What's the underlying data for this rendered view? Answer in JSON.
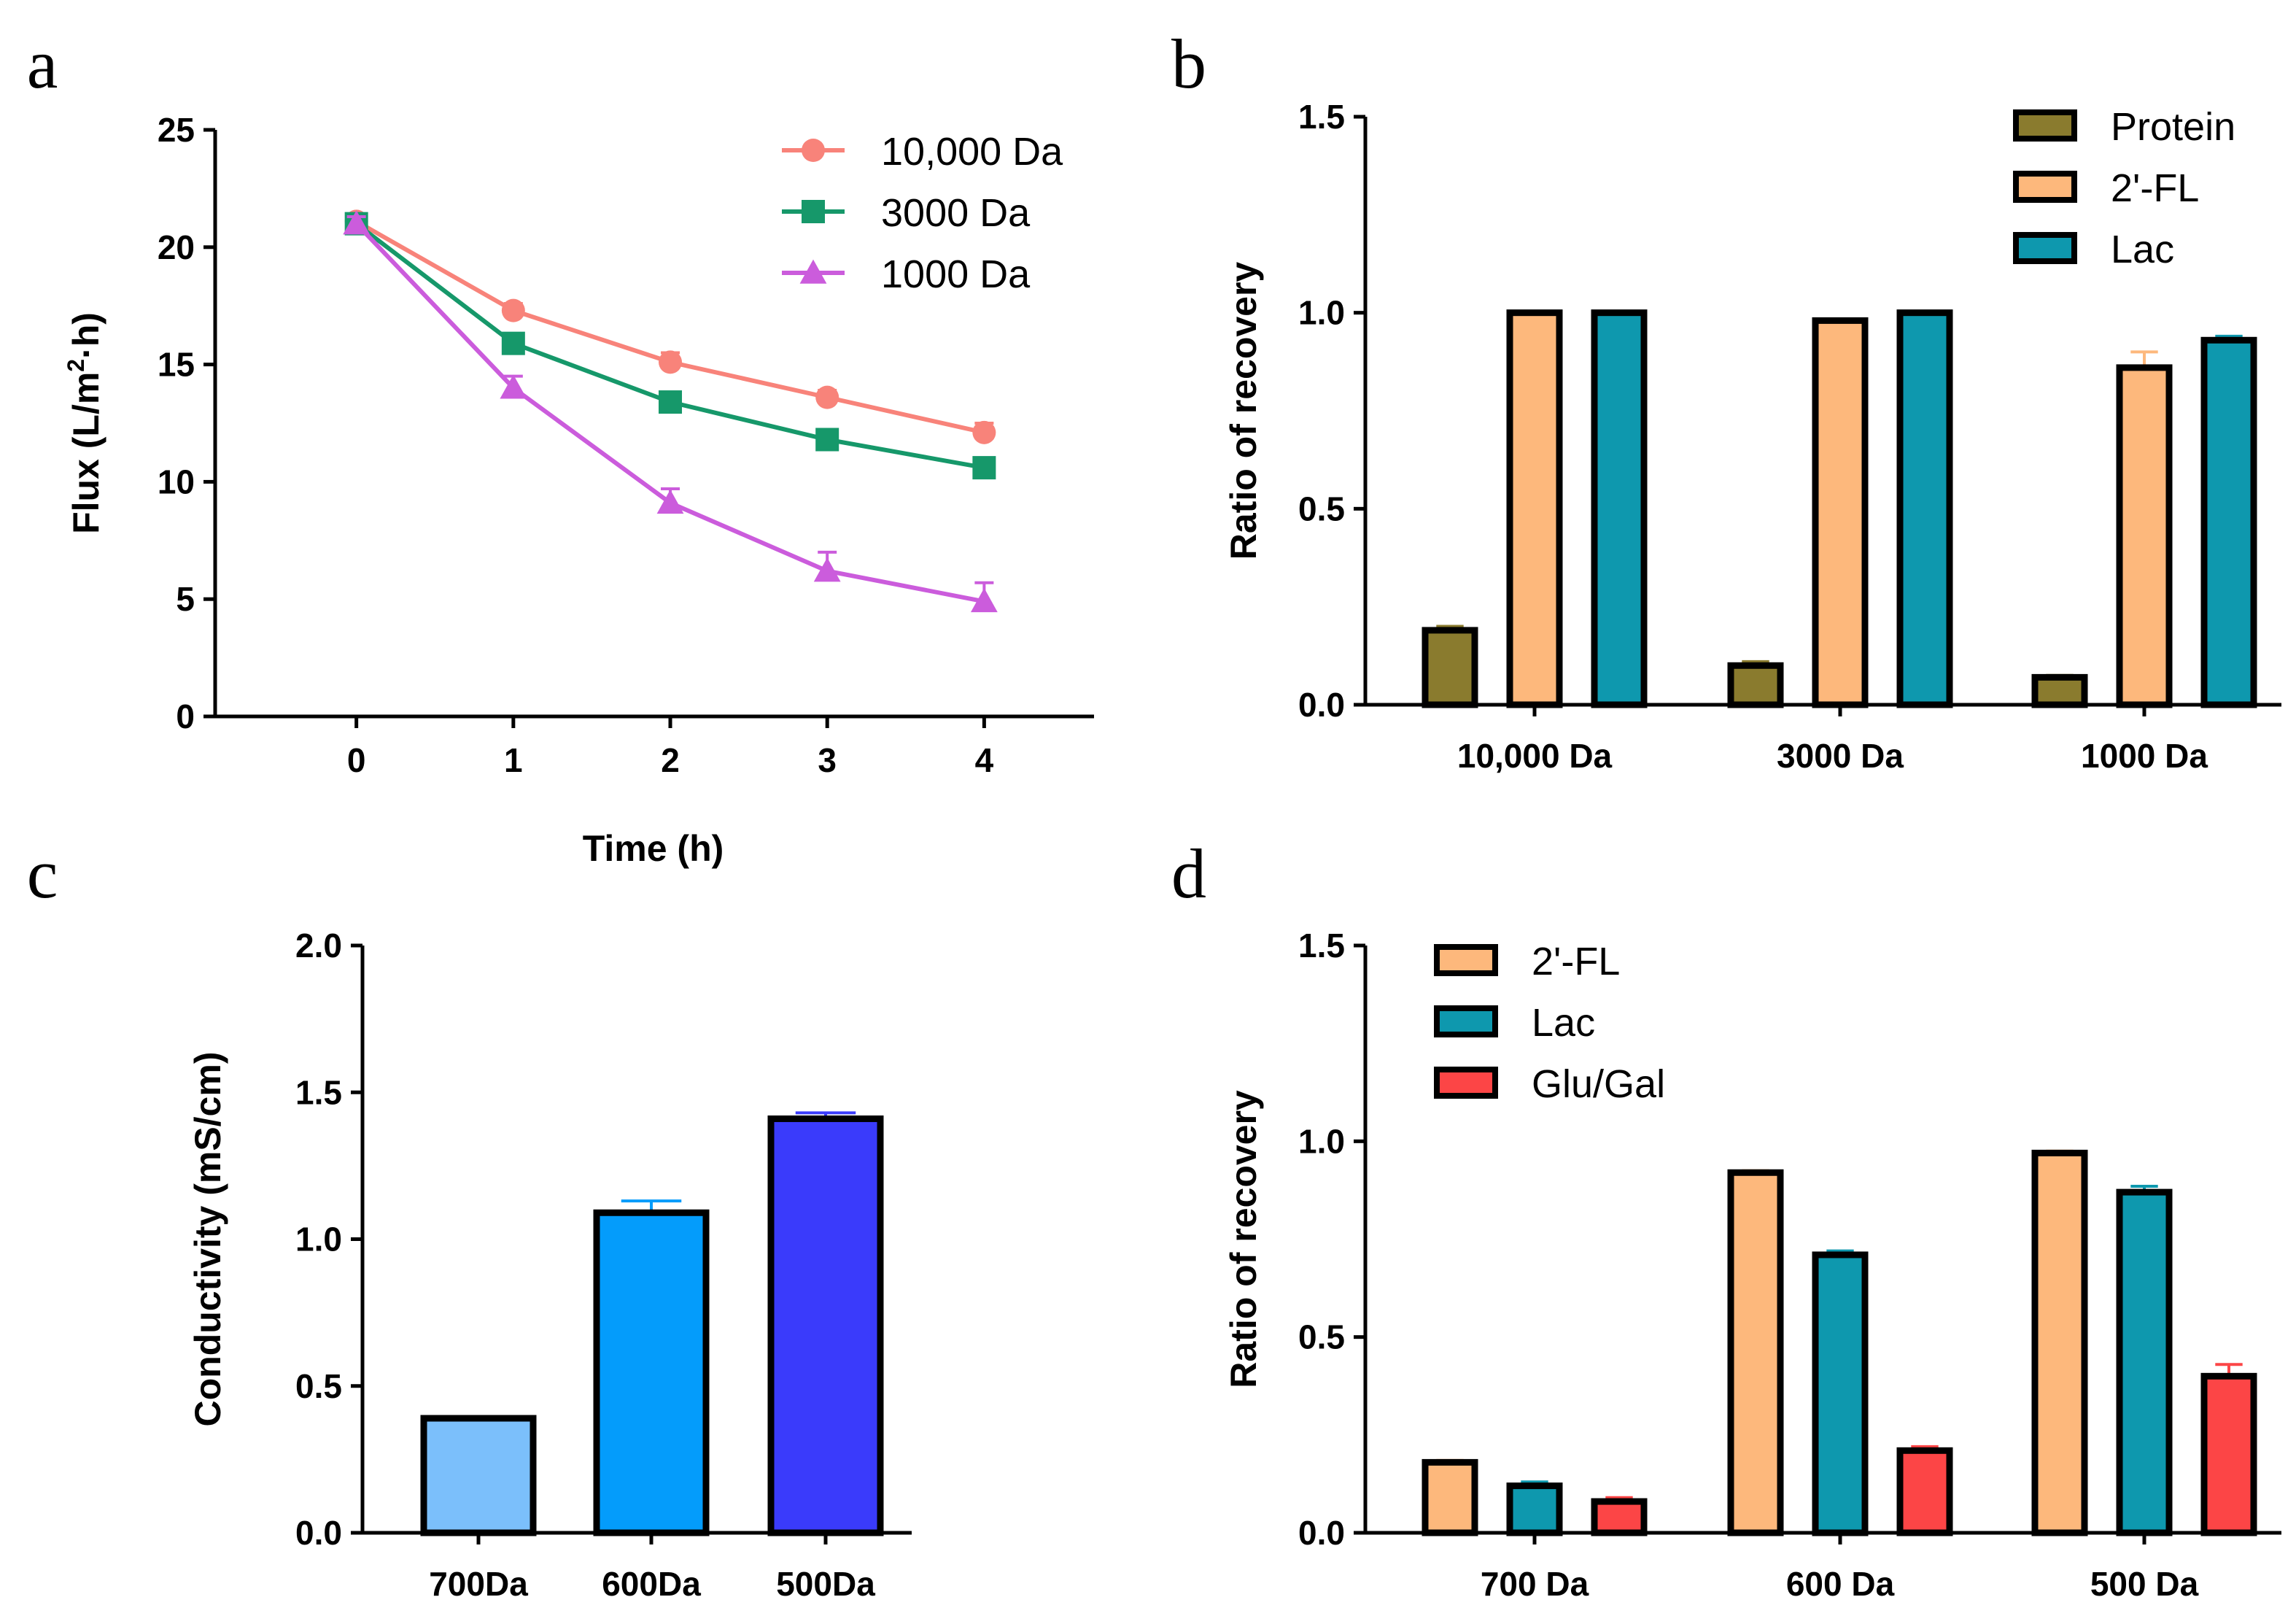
{
  "chart_data": [
    {
      "panel": "a",
      "type": "line",
      "xlabel": "Time (h)",
      "ylabel": "Flux (L/m²·h)",
      "x": [
        0,
        1,
        2,
        3,
        4
      ],
      "xlim": [
        -0.9,
        4.7
      ],
      "ylim": [
        0,
        25
      ],
      "yticks": [
        0,
        5,
        10,
        15,
        20,
        25
      ],
      "legend_position": "top-right",
      "series": [
        {
          "name": "10,000 Da",
          "marker": "circle",
          "color": "#F8837A",
          "values": [
            21.1,
            17.3,
            15.1,
            13.6,
            12.1
          ],
          "errors": [
            0.3,
            0.3,
            0.4,
            0.3,
            0.4
          ]
        },
        {
          "name": "3000 Da",
          "marker": "square",
          "color": "#16986A",
          "values": [
            21.0,
            15.9,
            13.4,
            11.8,
            10.6
          ],
          "errors": [
            0.3,
            0.3,
            0.3,
            0.3,
            0.3
          ]
        },
        {
          "name": "1000 Da",
          "marker": "triangle",
          "color": "#CB5CDC",
          "values": [
            21.0,
            14.0,
            9.1,
            6.2,
            4.9
          ],
          "errors": [
            0.3,
            0.5,
            0.6,
            0.8,
            0.8
          ]
        }
      ]
    },
    {
      "panel": "b",
      "type": "bar",
      "ylabel": "Ratio of recovery",
      "categories": [
        "10,000 Da",
        "3000 Da",
        "1000 Da"
      ],
      "ylim": [
        0,
        1.5
      ],
      "yticks": [
        "0.0",
        "0.5",
        "1.0",
        "1.5"
      ],
      "legend_position": "top-right",
      "series": [
        {
          "name": "Protein",
          "color": "#8A7B2E",
          "values": [
            0.19,
            0.1,
            0.07
          ],
          "errors": [
            0.01,
            0.01,
            0.005
          ]
        },
        {
          "name": "2'-FL",
          "color": "#FDB87C",
          "values": [
            1.0,
            0.98,
            0.86
          ],
          "errors": [
            0.003,
            0.003,
            0.04
          ]
        },
        {
          "name": "Lac",
          "color": "#0E98AE",
          "values": [
            1.0,
            1.0,
            0.93
          ],
          "errors": [
            0.003,
            0.003,
            0.01
          ]
        }
      ]
    },
    {
      "panel": "c",
      "type": "bar",
      "ylabel": "Conductivity (mS/cm)",
      "categories": [
        "700Da",
        "600Da",
        "500Da"
      ],
      "ylim": [
        0,
        2.0
      ],
      "yticks": [
        "0.0",
        "0.5",
        "1.0",
        "1.5",
        "2.0"
      ],
      "series": [
        {
          "name": "Conductivity",
          "colors": [
            "#7BBFFB",
            "#049CFB",
            "#3A3BFB"
          ],
          "values": [
            0.39,
            1.09,
            1.41
          ],
          "errors": [
            0.005,
            0.04,
            0.02
          ]
        }
      ]
    },
    {
      "panel": "d",
      "type": "bar",
      "ylabel": "Ratio of recovery",
      "categories": [
        "700 Da",
        "600 Da",
        "500 Da"
      ],
      "ylim": [
        0,
        1.5
      ],
      "yticks": [
        "0.0",
        "0.5",
        "1.0",
        "1.5"
      ],
      "legend_position": "top-left",
      "series": [
        {
          "name": "2'-FL",
          "color": "#FDB87C",
          "values": [
            0.18,
            0.92,
            0.97
          ],
          "errors": [
            0.005,
            0.005,
            0.005
          ]
        },
        {
          "name": "Lac",
          "color": "#0E98AE",
          "values": [
            0.12,
            0.71,
            0.87
          ],
          "errors": [
            0.01,
            0.01,
            0.015
          ]
        },
        {
          "name": "Glu/Gal",
          "color": "#FC4546",
          "values": [
            0.08,
            0.21,
            0.4
          ],
          "errors": [
            0.01,
            0.01,
            0.03
          ]
        }
      ]
    }
  ]
}
